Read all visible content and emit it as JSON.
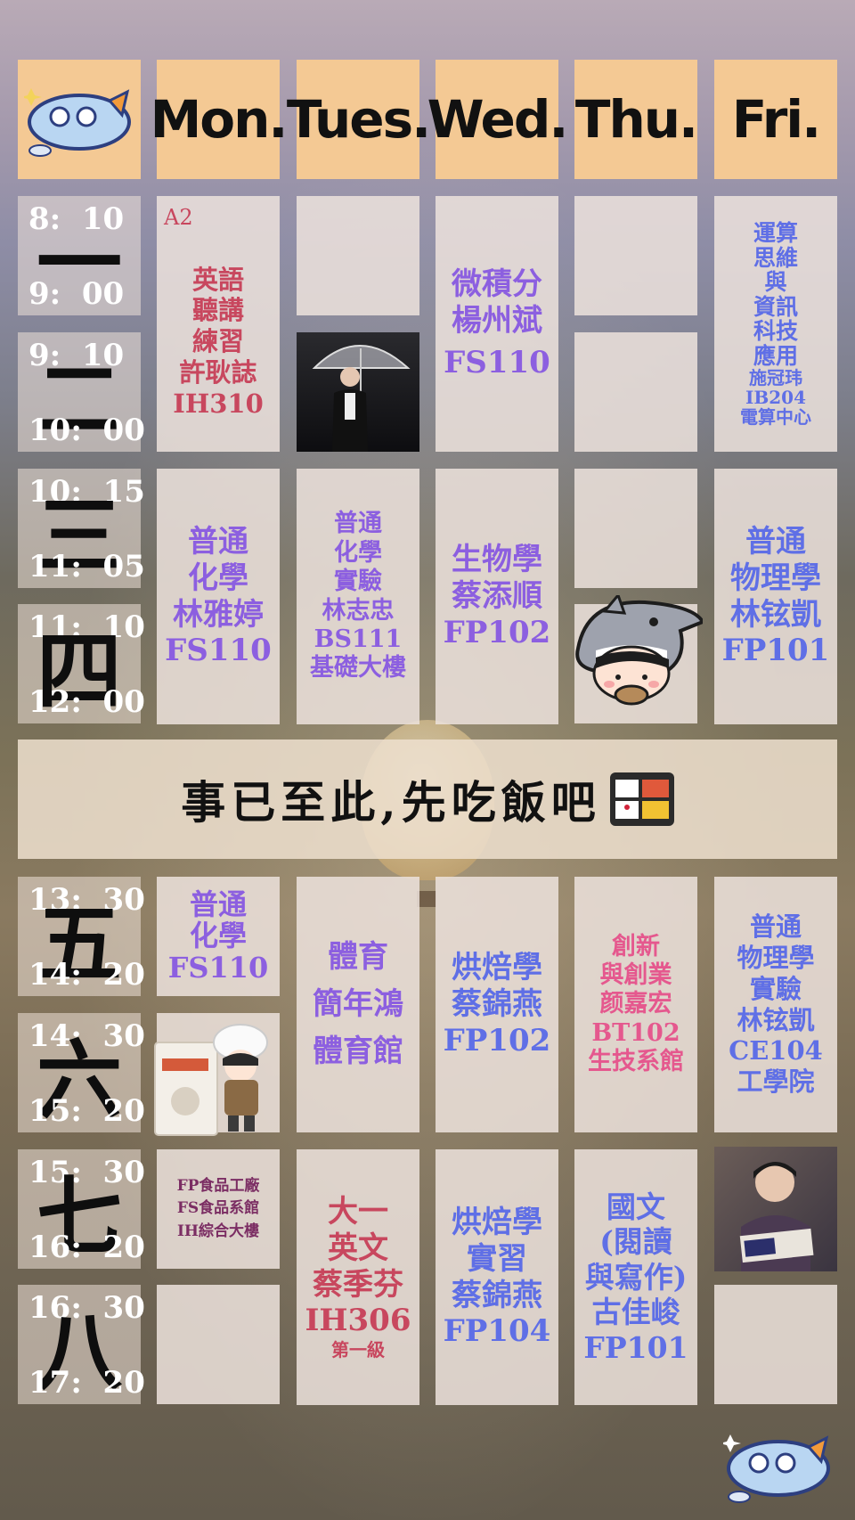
{
  "days": [
    "Mon.",
    "Tues.",
    "Wed.",
    "Thu.",
    "Fri."
  ],
  "periods": [
    {
      "num": "一",
      "start": "8:  10",
      "end": "9:  00"
    },
    {
      "num": "二",
      "start": "9:  10",
      "end": "10:  00"
    },
    {
      "num": "三",
      "start": "10:  15",
      "end": "11:  05"
    },
    {
      "num": "四",
      "start": "11:  10",
      "end": "12:  00"
    },
    {
      "num": "五",
      "start": "13:  30",
      "end": "14:  20"
    },
    {
      "num": "六",
      "start": "14:  30",
      "end": "15:  20"
    },
    {
      "num": "七",
      "start": "15:  30",
      "end": "16:  20"
    },
    {
      "num": "八",
      "start": "16:  30",
      "end": "17:  20"
    }
  ],
  "courses": {
    "mon_am": {
      "tag": "A2",
      "lines": [
        "英語",
        "聽講",
        "練習",
        "許耿誌",
        "IH310"
      ]
    },
    "wed_am": {
      "lines": [
        "微積分",
        "楊州斌",
        "FS110"
      ]
    },
    "fri_am": {
      "lines": [
        "運算",
        "思維",
        "與",
        "資訊",
        "科技",
        "應用",
        "施冠玮",
        "IB204",
        "電算中心"
      ]
    },
    "mon_p34": {
      "lines": [
        "普通",
        "化學",
        "林雅婷",
        "FS110"
      ]
    },
    "tue_p34": {
      "lines": [
        "普通",
        "化學",
        "實驗",
        "林志忠",
        "BS111",
        "基礎大樓"
      ]
    },
    "wed_p34": {
      "lines": [
        "生物學",
        "蔡添順",
        "FP102"
      ]
    },
    "fri_p34": {
      "lines": [
        "普通",
        "物理學",
        "林铉凱",
        "FP101"
      ]
    },
    "mon_p5": {
      "lines": [
        "普通",
        "化學",
        "FS110"
      ]
    },
    "tue_p56": {
      "lines": [
        "體育",
        "簡年鴻",
        "體育館"
      ]
    },
    "wed_p56": {
      "lines": [
        "烘焙學",
        "蔡錦燕",
        "FP102"
      ]
    },
    "thu_p56": {
      "lines": [
        "創新",
        "與創業",
        "颜嘉宏",
        "BT102",
        "生技系館"
      ]
    },
    "fri_p56": {
      "lines": [
        "普通",
        "物理學",
        "實驗",
        "林铉凱",
        "CE104",
        "工學院"
      ]
    },
    "mon_p7": {
      "lines": [
        "FP食品工廠",
        "FS食品系館",
        "IH綜合大樓"
      ]
    },
    "tue_p78": {
      "lines": [
        "大一",
        "英文",
        "蔡季芬",
        "IH306",
        "第一級"
      ]
    },
    "wed_p78": {
      "lines": [
        "烘焙學",
        "實習",
        "蔡錦燕",
        "FP104"
      ]
    },
    "thu_p78": {
      "lines": [
        "國文",
        "(閱讀",
        "與寫作)",
        "古佳峻",
        "FP101"
      ]
    }
  },
  "lunch": "事已至此,先吃飯吧",
  "colors": {
    "header": "#f4c994",
    "purple": "#8c5fe0",
    "blue": "#5f6fe6",
    "pink": "#e5588e",
    "red": "#c8475e"
  }
}
